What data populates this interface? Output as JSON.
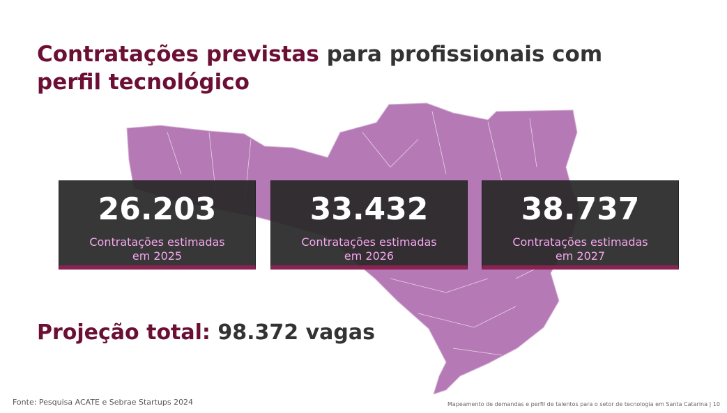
{
  "title": {
    "parts": [
      "Contratações previstas",
      "para profissionais com",
      "perfil tecnológico"
    ]
  },
  "cards": [
    {
      "value": "26.203",
      "label": "Contratações estimadas em 2025"
    },
    {
      "value": "33.432",
      "label": "Contratações estimadas em 2026"
    },
    {
      "value": "38.737",
      "label": "Contratações estimadas em 2027"
    }
  ],
  "total": {
    "label": "Projeção total:",
    "value": "98.372 vagas"
  },
  "footer": {
    "source": "Fonte: Pesquisa ACATE e Sebrae Startups 2024",
    "caption": "Mapeamento de demandas e perfil de talentos para o setor de tecnologia em Santa Catarina | 10"
  }
}
